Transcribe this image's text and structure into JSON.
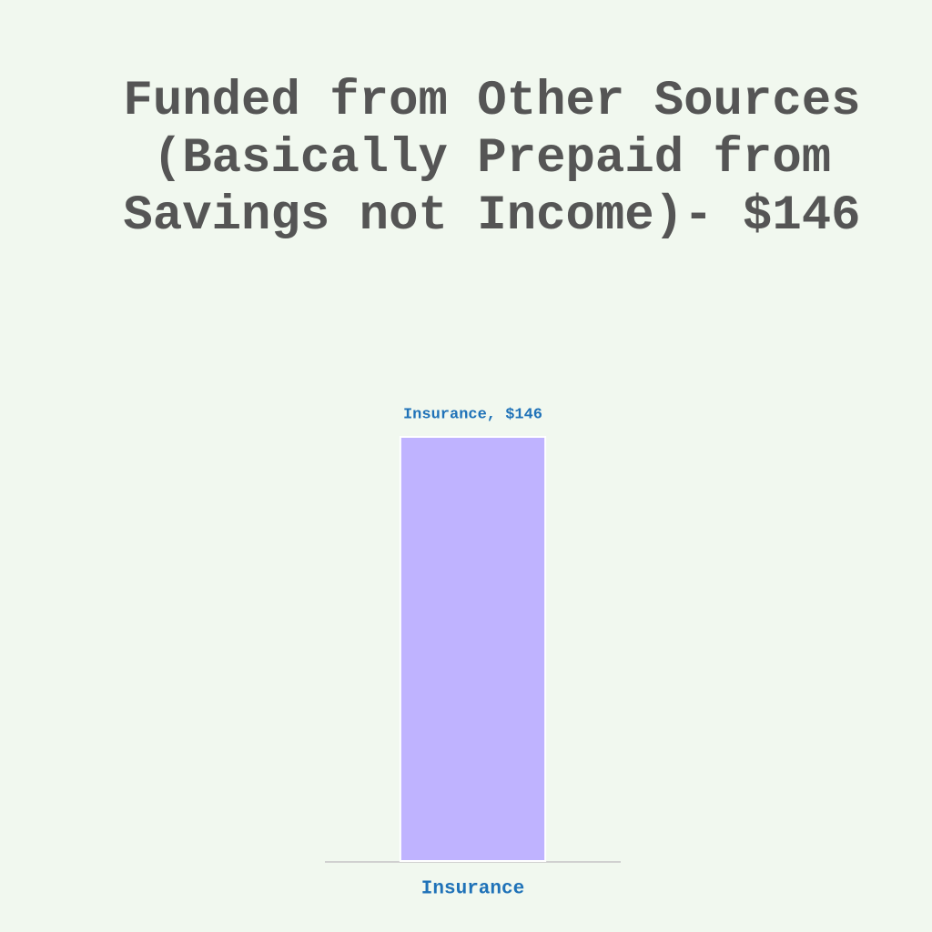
{
  "chart_data": {
    "type": "bar",
    "title": "Funded from Other Sources (Basically Prepaid from Savings not Income)- $146",
    "categories": [
      "Insurance"
    ],
    "values": [
      146
    ],
    "value_labels": [
      "Insurance, $146"
    ],
    "color": "#bfb3ff"
  }
}
